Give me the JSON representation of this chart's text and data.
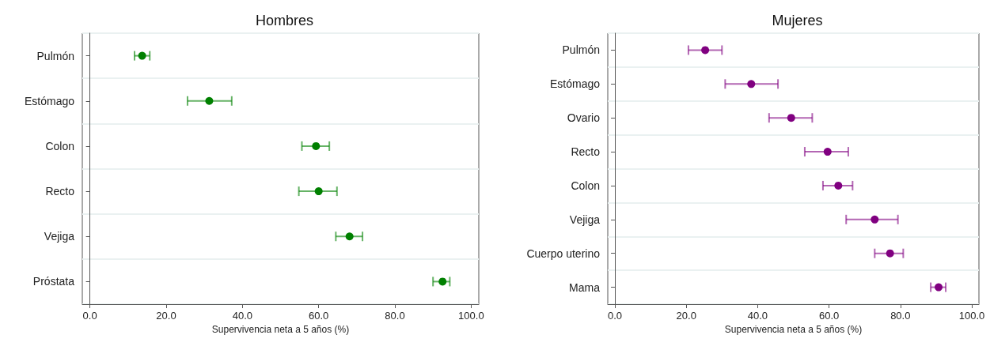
{
  "chart_data": [
    {
      "type": "scatter",
      "orientation": "horizontal",
      "title": "Hombres",
      "xlabel": "Supervivencia neta a 5 años (%)",
      "categories": [
        "Pulmón",
        "Estómago",
        "Colon",
        "Recto",
        "Vejiga",
        "Próstata"
      ],
      "series": [
        {
          "color": "#008000",
          "values": [
            13.7,
            31.3,
            59.3,
            60.0,
            68.1,
            92.5
          ],
          "errors": [
            [
              11.7,
              15.7
            ],
            [
              25.6,
              37.2
            ],
            [
              55.6,
              62.8
            ],
            [
              54.8,
              64.8
            ],
            [
              64.5,
              71.5
            ],
            [
              90.0,
              94.4
            ]
          ]
        }
      ],
      "xlim": [
        -2,
        102
      ],
      "xticks": [
        {
          "value": 0,
          "label": "0.0"
        },
        {
          "value": 20,
          "label": "20.0"
        },
        {
          "value": 40,
          "label": "40.0"
        },
        {
          "value": 60,
          "label": "60.0"
        },
        {
          "value": 80,
          "label": "80.0"
        },
        {
          "value": 100,
          "label": "100.0"
        }
      ],
      "grid": "y",
      "marker": "circle"
    },
    {
      "type": "scatter",
      "orientation": "horizontal",
      "title": "Mujeres",
      "xlabel": "Supervivencia neta a 5 años (%)",
      "categories": [
        "Pulmón",
        "Estómago",
        "Ovario",
        "Recto",
        "Colon",
        "Vejiga",
        "Cuerpo uterino",
        "Mama"
      ],
      "series": [
        {
          "color": "#800080",
          "values": [
            25.3,
            38.2,
            49.4,
            59.6,
            62.6,
            72.8,
            77.1,
            90.7
          ],
          "errors": [
            [
              20.6,
              30.0
            ],
            [
              30.9,
              45.7
            ],
            [
              43.2,
              55.3
            ],
            [
              53.2,
              65.4
            ],
            [
              58.3,
              66.6
            ],
            [
              64.8,
              79.3
            ],
            [
              72.8,
              80.8
            ],
            [
              88.5,
              92.7
            ]
          ]
        }
      ],
      "xlim": [
        -2,
        102
      ],
      "xticks": [
        {
          "value": 0,
          "label": "0.0"
        },
        {
          "value": 20,
          "label": "20.0"
        },
        {
          "value": 40,
          "label": "40.0"
        },
        {
          "value": 60,
          "label": "60.0"
        },
        {
          "value": 80,
          "label": "80.0"
        },
        {
          "value": 100,
          "label": "100.0"
        }
      ],
      "grid": "y",
      "marker": "circle"
    }
  ]
}
